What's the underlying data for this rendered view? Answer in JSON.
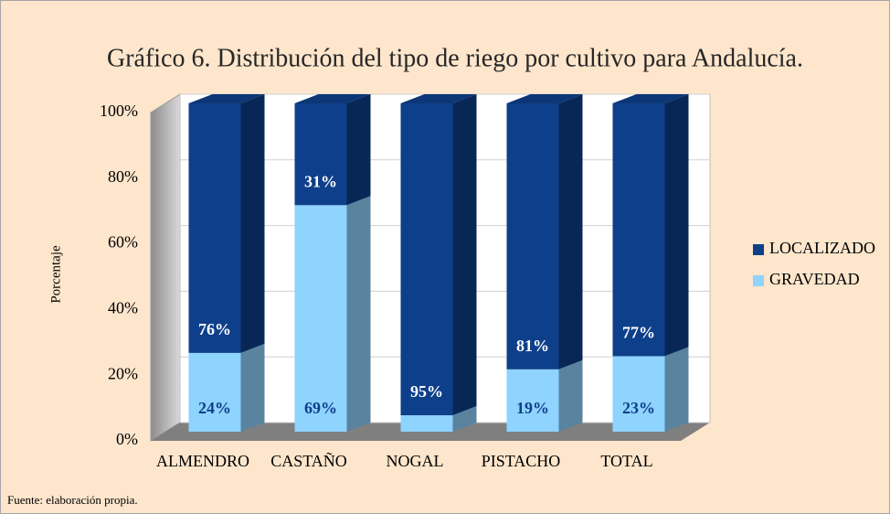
{
  "chart_data": {
    "type": "bar",
    "stacked": true,
    "title": "Gráfico 6. Distribución del tipo de riego por cultivo para Andalucía.",
    "y_axis_label": "Porcentaje",
    "footnote": "Fuente: elaboración propia.",
    "categories": [
      "ALMENDRO",
      "CASTAÑO",
      "NOGAL",
      "PISTACHO",
      "TOTAL"
    ],
    "series": [
      {
        "name": "GRAVEDAD",
        "color": "#8fd3ff",
        "values": [
          24,
          69,
          5,
          19,
          23
        ],
        "value_labels": [
          "24%",
          "69%",
          "5%",
          "19%",
          "23%"
        ]
      },
      {
        "name": "LOCALIZADO",
        "color": "#0e3f8a",
        "values": [
          76,
          31,
          95,
          81,
          77
        ],
        "value_labels": [
          "76%",
          "31%",
          "95%",
          "81%",
          "77%"
        ]
      }
    ],
    "ylim": [
      0,
      100
    ],
    "yticks": [
      {
        "value": 0,
        "label": "0%"
      },
      {
        "value": 20,
        "label": "20%"
      },
      {
        "value": 40,
        "label": "40%"
      },
      {
        "value": 60,
        "label": "60%"
      },
      {
        "value": 80,
        "label": "80%"
      },
      {
        "value": 100,
        "label": "100%"
      }
    ],
    "grid": true,
    "legend": "right"
  }
}
